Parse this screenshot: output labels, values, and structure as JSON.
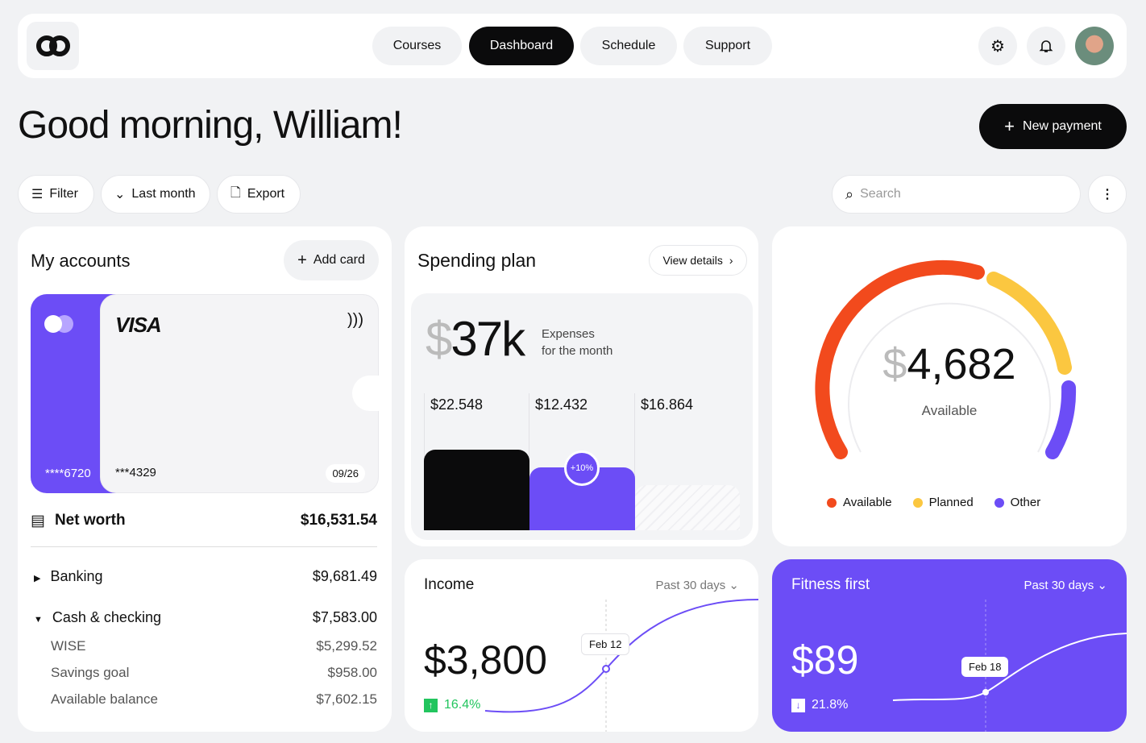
{
  "nav": {
    "items": [
      "Courses",
      "Dashboard",
      "Schedule",
      "Support"
    ],
    "active": "Dashboard"
  },
  "greeting": "Good morning, William!",
  "new_payment": "New payment",
  "toolbar": {
    "filter": "Filter",
    "period": "Last month",
    "export": "Export",
    "search_placeholder": "Search"
  },
  "accounts": {
    "title": "My accounts",
    "add_card": "Add card",
    "card_back": {
      "number": "****6720"
    },
    "card_front": {
      "brand": "VISA",
      "number": "***4329",
      "expiry": "09/26"
    },
    "net_worth_label": "Net worth",
    "net_worth": "$16,531.54",
    "rows": [
      {
        "label": "Banking",
        "value": "$9,681.49"
      },
      {
        "label": "Cash & checking",
        "value": "$7,583.00"
      },
      {
        "label": "WISE",
        "value": "$5,299.52"
      },
      {
        "label": "Savings goal",
        "value": "$958.00"
      },
      {
        "label": "Available balance",
        "value": "$7,602.15"
      }
    ]
  },
  "spending": {
    "title": "Spending plan",
    "view_details": "View details",
    "currency": "$",
    "amount": "37k",
    "caption1": "Expenses",
    "caption2": "for the month",
    "bars": [
      {
        "label": "$22.548"
      },
      {
        "label": "$12.432",
        "badge": "+10%"
      },
      {
        "label": "$16.864"
      }
    ]
  },
  "gauge": {
    "currency": "$",
    "amount": "4,682",
    "label": "Available",
    "legend": [
      "Available",
      "Planned",
      "Other"
    ],
    "colors": {
      "available": "#f24a1d",
      "planned": "#fbc740",
      "other": "#6c4df6"
    }
  },
  "income": {
    "title": "Income",
    "period": "Past 30 days",
    "amount": "$3,800",
    "change": "16.4%",
    "tooltip": "Feb 12"
  },
  "fitness": {
    "title": "Fitness first",
    "period": "Past 30 days",
    "amount": "$89",
    "change": "21.8%",
    "tooltip": "Feb 18"
  },
  "colors": {
    "accent": "#6c4df6",
    "dark": "#0b0b0c",
    "positive": "#22c55e"
  }
}
